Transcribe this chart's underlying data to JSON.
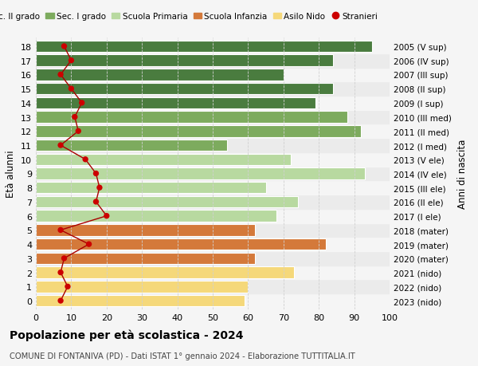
{
  "ages": [
    18,
    17,
    16,
    15,
    14,
    13,
    12,
    11,
    10,
    9,
    8,
    7,
    6,
    5,
    4,
    3,
    2,
    1,
    0
  ],
  "right_labels": [
    "2005 (V sup)",
    "2006 (IV sup)",
    "2007 (III sup)",
    "2008 (II sup)",
    "2009 (I sup)",
    "2010 (III med)",
    "2011 (II med)",
    "2012 (I med)",
    "2013 (V ele)",
    "2014 (IV ele)",
    "2015 (III ele)",
    "2016 (II ele)",
    "2017 (I ele)",
    "2018 (mater)",
    "2019 (mater)",
    "2020 (mater)",
    "2021 (nido)",
    "2022 (nido)",
    "2023 (nido)"
  ],
  "bar_values": [
    95,
    84,
    70,
    84,
    79,
    88,
    92,
    54,
    72,
    93,
    65,
    74,
    68,
    62,
    82,
    62,
    73,
    60,
    59
  ],
  "bar_colors": [
    "#4a7c3f",
    "#4a7c3f",
    "#4a7c3f",
    "#4a7c3f",
    "#4a7c3f",
    "#7dab5e",
    "#7dab5e",
    "#7dab5e",
    "#b8d9a0",
    "#b8d9a0",
    "#b8d9a0",
    "#b8d9a0",
    "#b8d9a0",
    "#d4793a",
    "#d4793a",
    "#d4793a",
    "#f5d87a",
    "#f5d87a",
    "#f5d87a"
  ],
  "stranieri_values": [
    8,
    10,
    7,
    10,
    13,
    11,
    12,
    7,
    14,
    17,
    18,
    17,
    20,
    7,
    15,
    8,
    7,
    9,
    7
  ],
  "title_bold": "Popolazione per età scolastica - 2024",
  "subtitle": "COMUNE DI FONTANIVA (PD) - Dati ISTAT 1° gennaio 2024 - Elaborazione TUTTITALIA.IT",
  "ylabel": "Età alunni",
  "right_ylabel": "Anni di nascita",
  "xlim": [
    0,
    100
  ],
  "xticks": [
    0,
    10,
    20,
    30,
    40,
    50,
    60,
    70,
    80,
    90,
    100
  ],
  "bg_color": "#f5f5f5",
  "legend_items": [
    {
      "label": "Sec. II grado",
      "color": "#4a7c3f"
    },
    {
      "label": "Sec. I grado",
      "color": "#7dab5e"
    },
    {
      "label": "Scuola Primaria",
      "color": "#b8d9a0"
    },
    {
      "label": "Scuola Infanzia",
      "color": "#d4793a"
    },
    {
      "label": "Asilo Nido",
      "color": "#f5d87a"
    },
    {
      "label": "Stranieri",
      "color": "#cc0000"
    }
  ],
  "bar_height": 0.82,
  "grid_color": "#d0d0d0",
  "stranieri_line_color": "#aa0000",
  "stranieri_dot_color": "#cc0000",
  "row_alt_color": "#ebebeb"
}
